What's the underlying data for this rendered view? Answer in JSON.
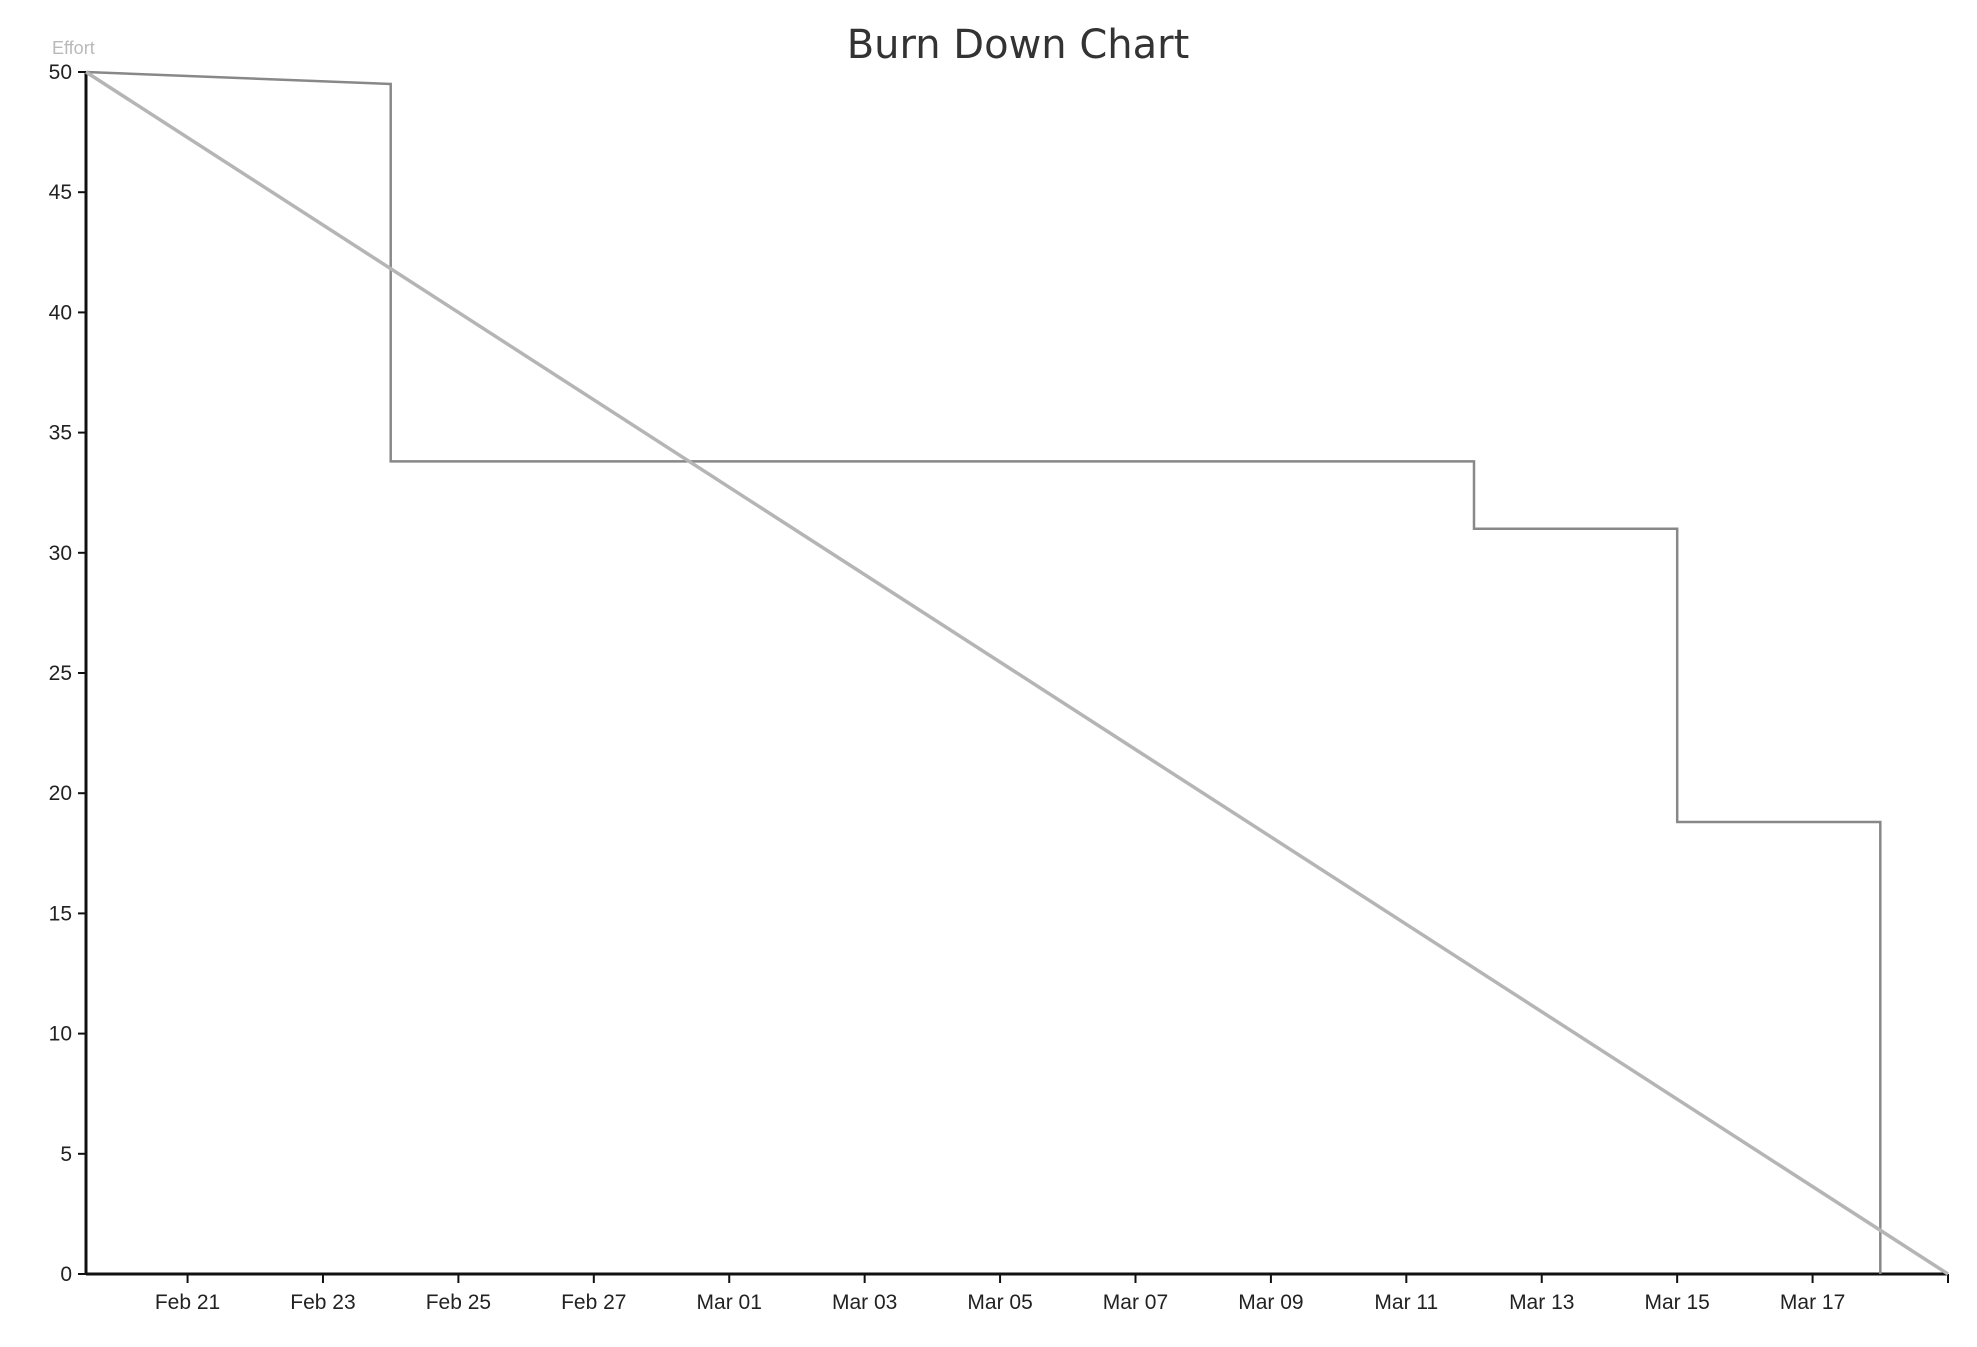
{
  "chart_data": {
    "type": "line",
    "title": "Burn Down Chart",
    "ylabel": "Effort",
    "xlabel": "",
    "ylim": [
      0,
      50
    ],
    "yticks": [
      0,
      5,
      10,
      15,
      20,
      25,
      30,
      35,
      40,
      45,
      50
    ],
    "xlim": [
      "2021-02-19 12:00",
      "2021-03-19"
    ],
    "xticks": [
      {
        "date": "2021-02-21",
        "label": "Feb 21"
      },
      {
        "date": "2021-02-23",
        "label": "Feb 23"
      },
      {
        "date": "2021-02-25",
        "label": "Feb 25"
      },
      {
        "date": "2021-02-27",
        "label": "Feb 27"
      },
      {
        "date": "2021-03-01",
        "label": "Mar 01"
      },
      {
        "date": "2021-03-03",
        "label": "Mar 03"
      },
      {
        "date": "2021-03-05",
        "label": "Mar 05"
      },
      {
        "date": "2021-03-07",
        "label": "Mar 07"
      },
      {
        "date": "2021-03-09",
        "label": "Mar 09"
      },
      {
        "date": "2021-03-11",
        "label": "Mar 11"
      },
      {
        "date": "2021-03-13",
        "label": "Mar 13"
      },
      {
        "date": "2021-03-15",
        "label": "Mar 15"
      },
      {
        "date": "2021-03-17",
        "label": "Mar 17"
      }
    ],
    "grid": false,
    "legend": "none",
    "series": [
      {
        "style": "step",
        "color": "#888888",
        "points": [
          {
            "x": "2021-02-19 12:00",
            "y": 50
          },
          {
            "x": "2021-02-24",
            "y": 49.5
          },
          {
            "x": "2021-02-24",
            "y": 33.8
          },
          {
            "x": "2021-03-12",
            "y": 33.8
          },
          {
            "x": "2021-03-12",
            "y": 31
          },
          {
            "x": "2021-03-15",
            "y": 31
          },
          {
            "x": "2021-03-15",
            "y": 18.8
          },
          {
            "x": "2021-03-18",
            "y": 18.8
          },
          {
            "x": "2021-03-18",
            "y": 0
          }
        ]
      },
      {
        "style": "ideal",
        "color": "#b5b5b5",
        "points": [
          {
            "x": "2021-02-19 12:00",
            "y": 50
          },
          {
            "x": "2021-03-19",
            "y": 0
          }
        ]
      }
    ]
  }
}
